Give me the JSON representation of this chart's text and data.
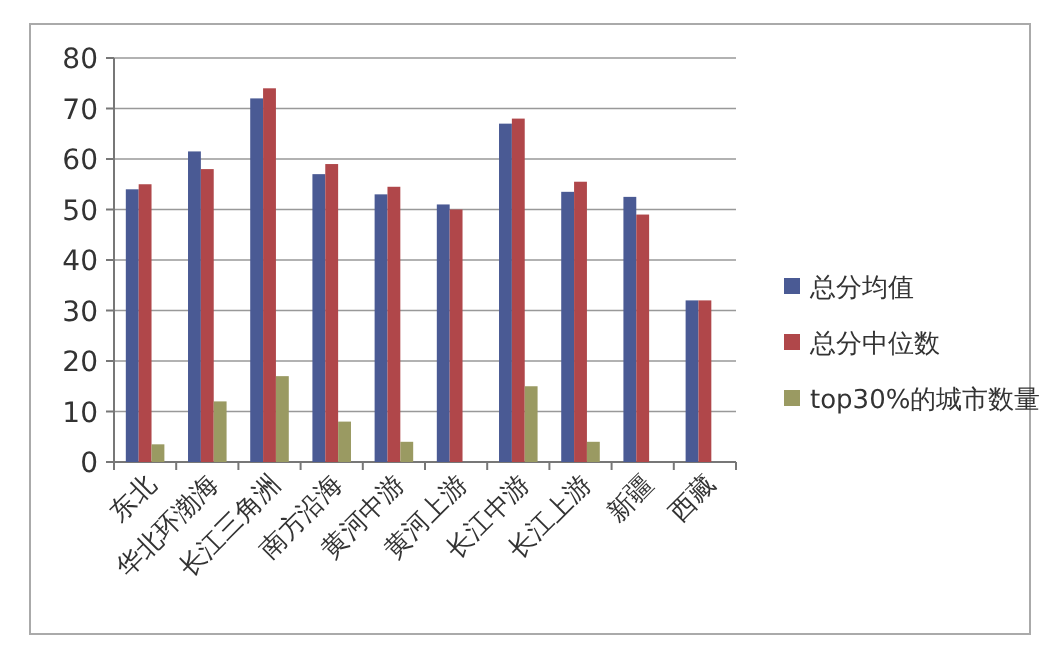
{
  "chart_data": {
    "type": "bar",
    "categories": [
      "东北",
      "华北环渤海",
      "长江三角洲",
      "南方沿海",
      "黄河中游",
      "黄河上游",
      "长江中游",
      "长江上游",
      "新疆",
      "西藏"
    ],
    "series": [
      {
        "name": "总分均值",
        "color": "#4a5a94",
        "values": [
          54,
          61.5,
          72,
          57,
          53,
          51,
          67,
          53.5,
          52.5,
          32
        ]
      },
      {
        "name": "总分中位数",
        "color": "#b0474a",
        "values": [
          55,
          58,
          74,
          59,
          54.5,
          50,
          68,
          55.5,
          49,
          32
        ]
      },
      {
        "name": "top30%的城市数量",
        "color": "#9a9a62",
        "values": [
          3.5,
          12,
          17,
          8,
          4,
          0,
          15,
          4,
          0,
          0
        ]
      }
    ],
    "ylim": [
      0,
      80
    ],
    "yticks": [
      0,
      10,
      20,
      30,
      40,
      50,
      60,
      70,
      80
    ],
    "grid": "y",
    "legend": "right"
  }
}
